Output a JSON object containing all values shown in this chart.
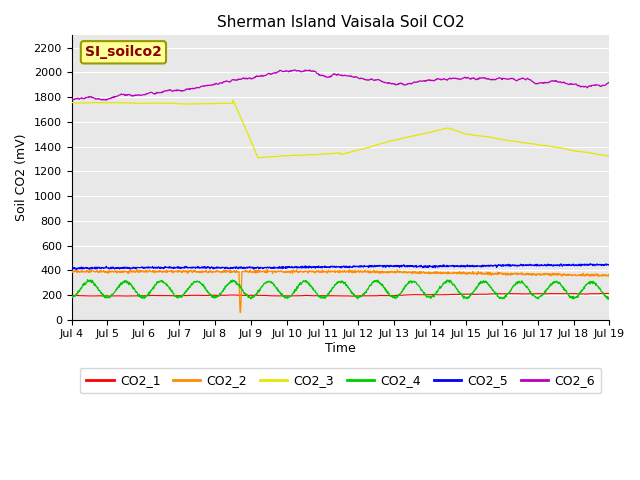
{
  "title": "Sherman Island Vaisala Soil CO2",
  "ylabel": "Soil CO2 (mV)",
  "xlabel": "Time",
  "label_text": "SI_soilco2",
  "x_tick_labels": [
    "Jul 4",
    "Jul 5",
    "Jul 6",
    "Jul 7",
    "Jul 8",
    "Jul 9",
    "Jul 10",
    "Jul 11",
    "Jul 12",
    "Jul 13",
    "Jul 14",
    "Jul 15",
    "Jul 16",
    "Jul 17",
    "Jul 18",
    "Jul 19"
  ],
  "ylim": [
    0,
    2300
  ],
  "yticks": [
    0,
    200,
    400,
    600,
    800,
    1000,
    1200,
    1400,
    1600,
    1800,
    2000,
    2200
  ],
  "colors": {
    "CO2_1": "#ff0000",
    "CO2_2": "#ff8c00",
    "CO2_3": "#e6e600",
    "CO2_4": "#00cc00",
    "CO2_5": "#0000ff",
    "CO2_6": "#bb00bb"
  },
  "background_color": "#e8e8e8",
  "n_points": 1440,
  "seed": 42
}
